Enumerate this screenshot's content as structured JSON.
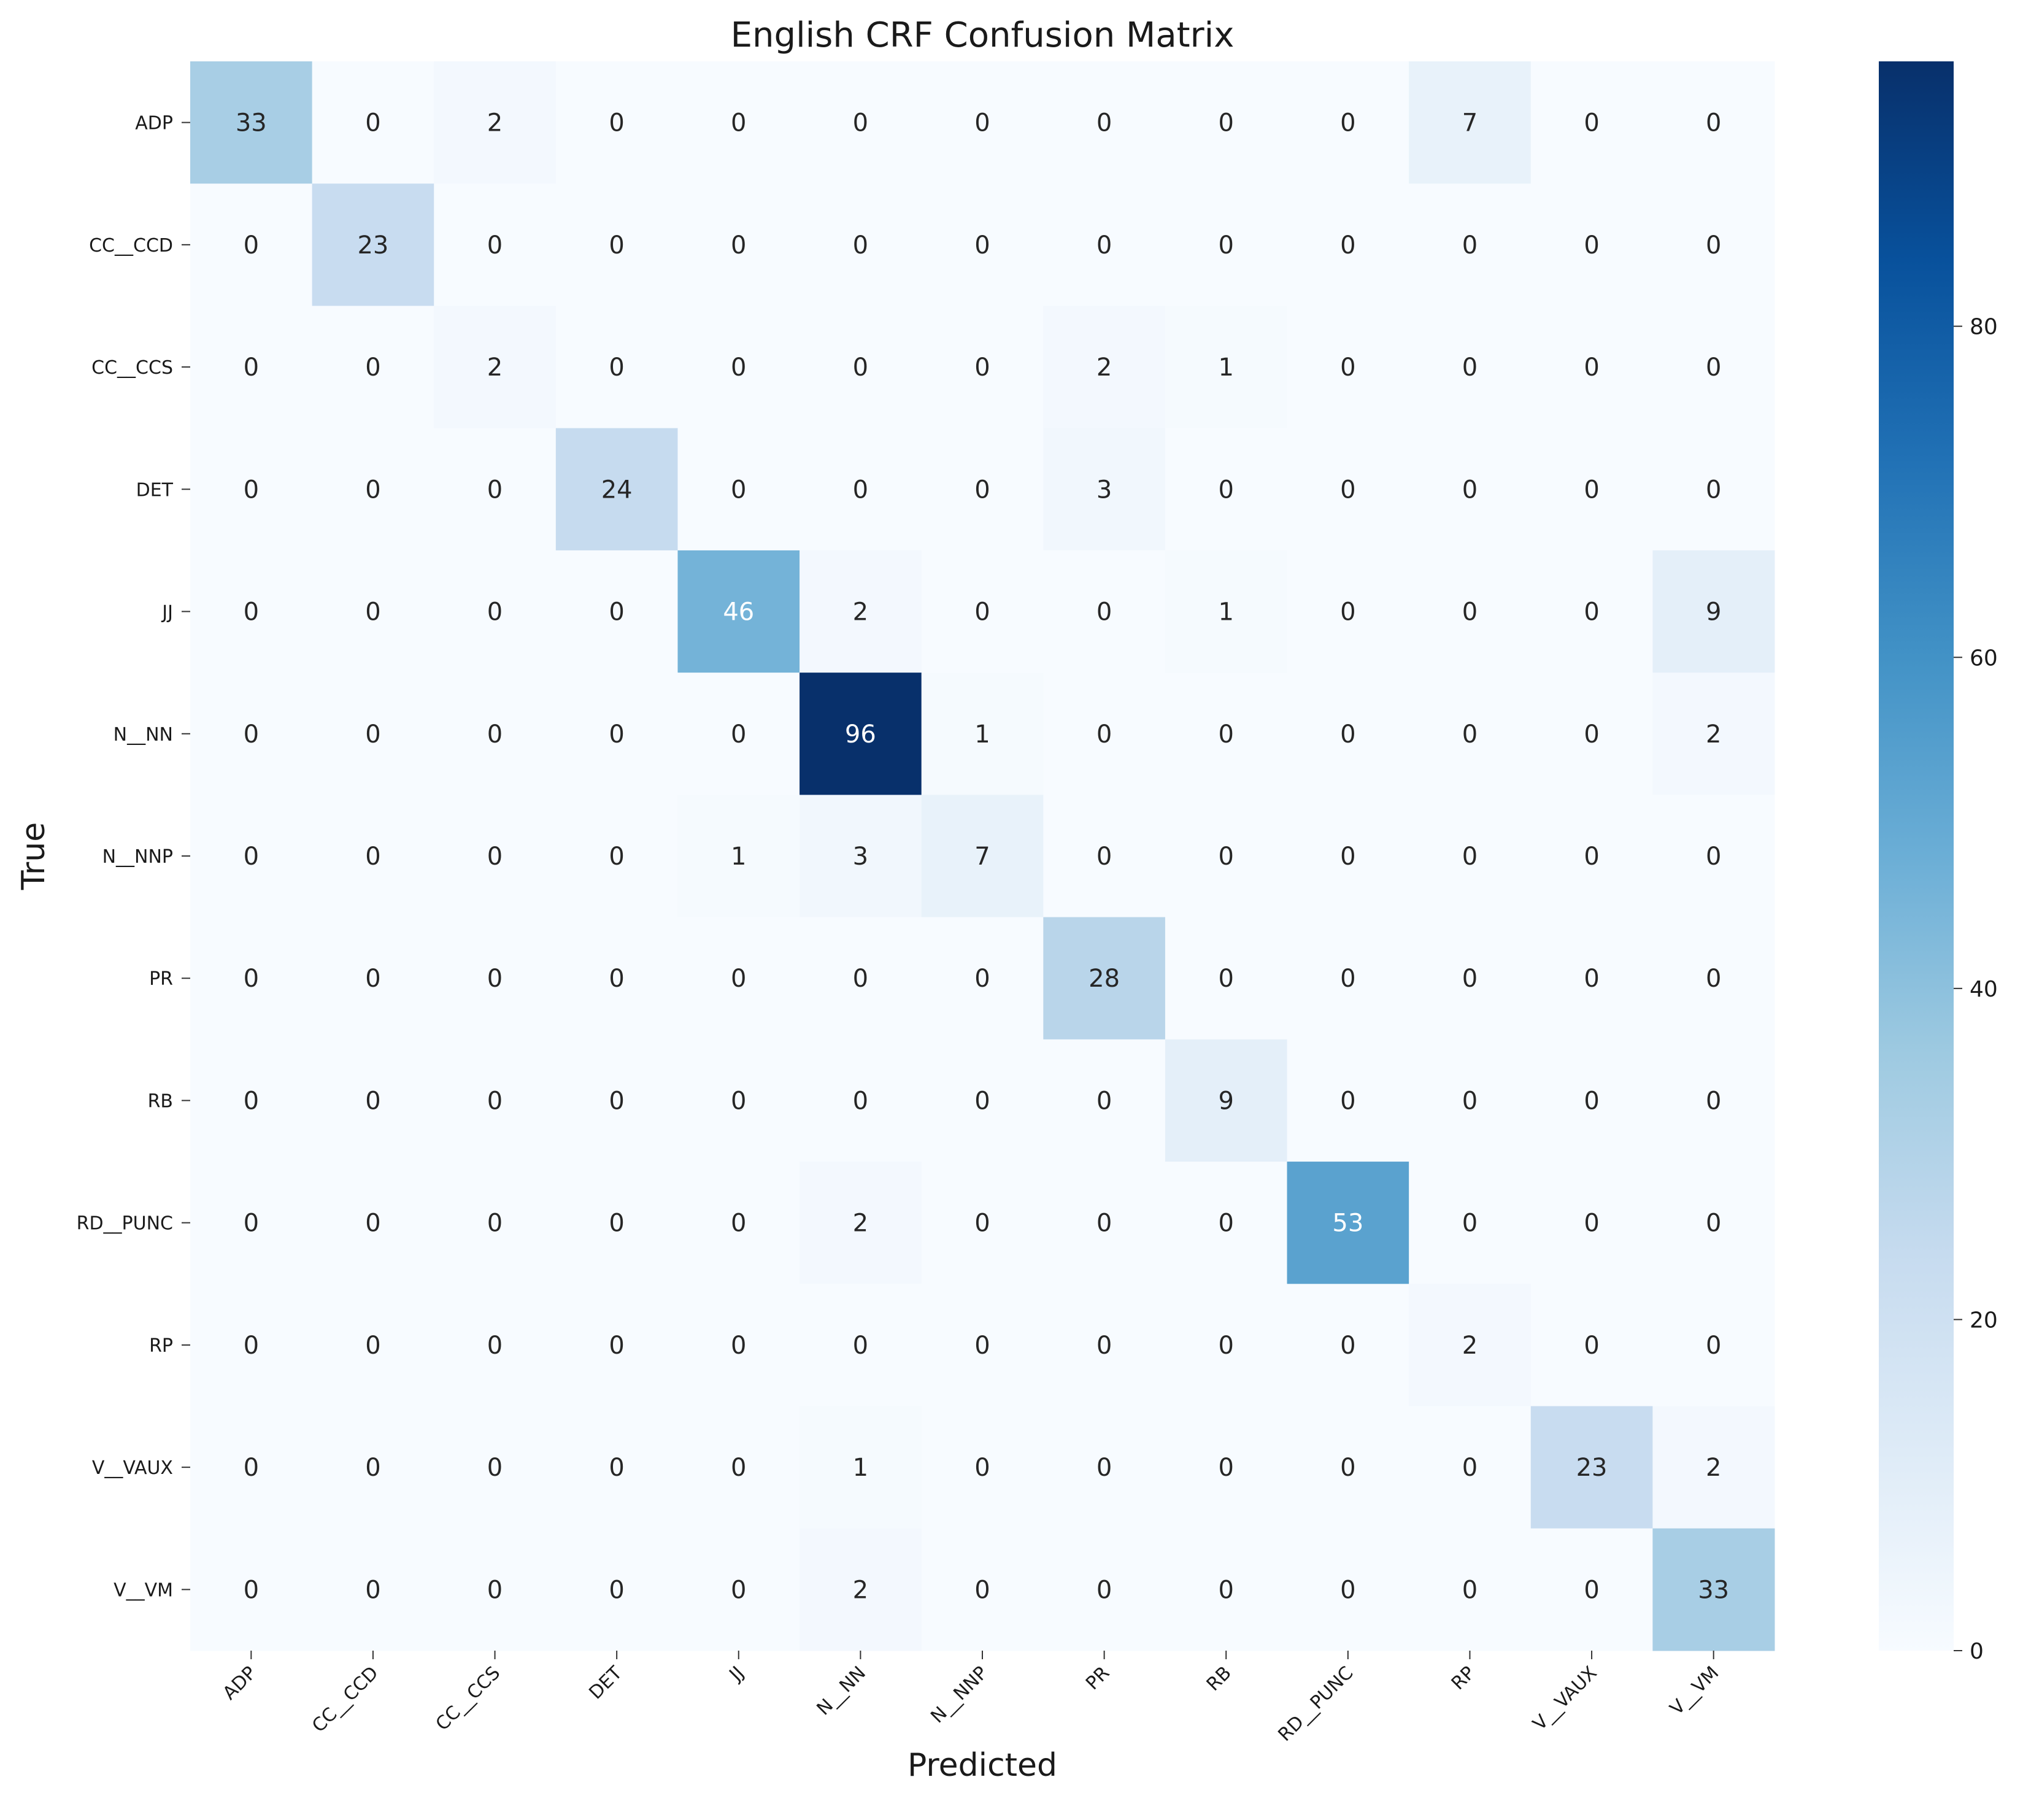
{
  "chart_data": {
    "type": "heatmap",
    "title": "English CRF Confusion Matrix",
    "xlabel": "Predicted",
    "ylabel": "True",
    "x_categories": [
      "ADP",
      "CC__CCD",
      "CC__CCS",
      "DET",
      "JJ",
      "N__NN",
      "N__NNP",
      "PR",
      "RB",
      "RD__PUNC",
      "RP",
      "V__VAUX",
      "V__VM"
    ],
    "y_categories": [
      "ADP",
      "CC__CCD",
      "CC__CCS",
      "DET",
      "JJ",
      "N__NN",
      "N__NNP",
      "PR",
      "RB",
      "RD__PUNC",
      "RP",
      "V__VAUX",
      "V__VM"
    ],
    "values": [
      [
        33,
        0,
        2,
        0,
        0,
        0,
        0,
        0,
        0,
        0,
        7,
        0,
        0
      ],
      [
        0,
        23,
        0,
        0,
        0,
        0,
        0,
        0,
        0,
        0,
        0,
        0,
        0
      ],
      [
        0,
        0,
        2,
        0,
        0,
        0,
        0,
        2,
        1,
        0,
        0,
        0,
        0
      ],
      [
        0,
        0,
        0,
        24,
        0,
        0,
        0,
        3,
        0,
        0,
        0,
        0,
        0
      ],
      [
        0,
        0,
        0,
        0,
        46,
        2,
        0,
        0,
        1,
        0,
        0,
        0,
        9
      ],
      [
        0,
        0,
        0,
        0,
        0,
        96,
        1,
        0,
        0,
        0,
        0,
        0,
        2
      ],
      [
        0,
        0,
        0,
        0,
        1,
        3,
        7,
        0,
        0,
        0,
        0,
        0,
        0
      ],
      [
        0,
        0,
        0,
        0,
        0,
        0,
        0,
        28,
        0,
        0,
        0,
        0,
        0
      ],
      [
        0,
        0,
        0,
        0,
        0,
        0,
        0,
        0,
        9,
        0,
        0,
        0,
        0
      ],
      [
        0,
        0,
        0,
        0,
        0,
        2,
        0,
        0,
        0,
        53,
        0,
        0,
        0
      ],
      [
        0,
        0,
        0,
        0,
        0,
        0,
        0,
        0,
        0,
        0,
        2,
        0,
        0
      ],
      [
        0,
        0,
        0,
        0,
        0,
        1,
        0,
        0,
        0,
        0,
        0,
        23,
        2
      ],
      [
        0,
        0,
        0,
        0,
        0,
        2,
        0,
        0,
        0,
        0,
        0,
        0,
        33
      ]
    ],
    "colormap": "Blues",
    "colorbar": {
      "min": 0,
      "max": 96,
      "ticks": [
        0,
        20,
        40,
        60,
        80
      ]
    },
    "annotation_colors": {
      "dark": "#262626",
      "light": "#ffffff"
    }
  }
}
